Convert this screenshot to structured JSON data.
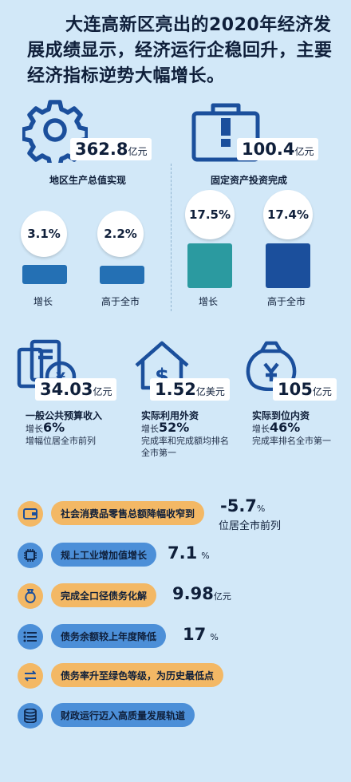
{
  "headline": "大连高新区亮出的2020年经济发展成绩显示，经济运行企稳回升，主要经济指标逆势大幅增长。",
  "gdp": {
    "value": "362.8",
    "unit": "亿元",
    "label": "地区生产总值实现",
    "growth": "3.1%",
    "above_city": "2.2%",
    "growth_label": "增长",
    "above_label": "高于全市"
  },
  "investment": {
    "value": "100.4",
    "unit": "亿元",
    "label": "固定资产投资完成",
    "growth": "17.5%",
    "above_city": "17.4%",
    "growth_label": "增长",
    "above_label": "高于全市"
  },
  "budget": {
    "value": "34.03",
    "unit": "亿元",
    "label": "一般公共预算收入",
    "growth_prefix": "增长",
    "growth": "6%",
    "note": "增幅位居全市前列"
  },
  "fdi": {
    "value": "1.52",
    "unit": "亿美元",
    "label": "实际利用外资",
    "growth_prefix": "增长",
    "growth": "52%",
    "note": "完成率和完成额均排名全市第一"
  },
  "domestic": {
    "value": "105",
    "unit": "亿元",
    "label": "实际到位内资",
    "growth_prefix": "增长",
    "growth": "46%",
    "note": "完成率排名全市第一"
  },
  "rows": [
    {
      "icon": "wallet-icon",
      "label": "社会消费品零售总额降幅收窄到",
      "value": "-5.7",
      "unit": "%",
      "note": "位居全市前列"
    },
    {
      "icon": "chip-icon",
      "label": "规上工业增加值增长",
      "value": "7.1",
      "unit": "%",
      "note": ""
    },
    {
      "icon": "money-bag-icon",
      "label": "完成全口径债务化解",
      "value": "9.98",
      "unit": "亿元",
      "note": ""
    },
    {
      "icon": "list-icon",
      "label": "债务余额较上年度降低",
      "value": "17",
      "unit": "%",
      "note": ""
    },
    {
      "icon": "exchange-icon",
      "label": "债务率升至绿色等级，为历史最低点",
      "value": "",
      "unit": "",
      "note": ""
    },
    {
      "icon": "database-icon",
      "label": "财政运行迈入高质量发展轨道",
      "value": "",
      "unit": "",
      "note": ""
    }
  ],
  "colors": {
    "background": "#d2e8f8",
    "dark_blue": "#1b4f9c",
    "mid_blue": "#2470b4",
    "teal": "#2b9aa0",
    "orange": "#f3b865",
    "pill_blue": "#4c8fd8"
  }
}
